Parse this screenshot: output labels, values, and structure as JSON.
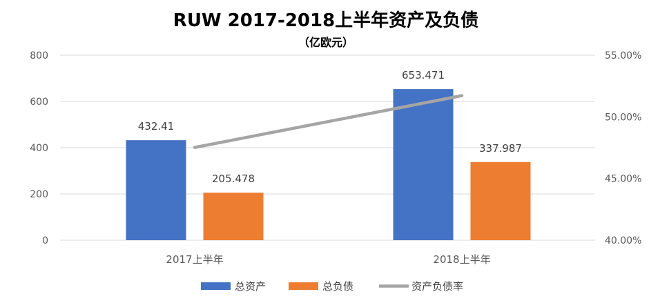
{
  "chart_data": {
    "type": "bar",
    "title": "RUW 2017-2018上半年资产及负债",
    "subtitle": "（亿欧元）",
    "categories": [
      "2017上半年",
      "2018上半年"
    ],
    "series": [
      {
        "name": "总资产",
        "kind": "bar",
        "axis": "left",
        "color": "#4472C4",
        "values": [
          432.41,
          653.471
        ],
        "labels": [
          "432.41",
          "653.471"
        ]
      },
      {
        "name": "总负债",
        "kind": "bar",
        "axis": "left",
        "color": "#ED7D31",
        "values": [
          205.478,
          337.987
        ],
        "labels": [
          "205.478",
          "337.987"
        ]
      },
      {
        "name": "资产负债率",
        "kind": "line",
        "axis": "right",
        "color": "#A5A5A5",
        "values": [
          47.52,
          51.72
        ]
      }
    ],
    "y_left": {
      "min": 0,
      "max": 800,
      "ticks": [
        0,
        200,
        400,
        600,
        800
      ],
      "tick_labels": [
        "0",
        "200",
        "400",
        "600",
        "800"
      ]
    },
    "y_right": {
      "min": 40,
      "max": 55,
      "ticks": [
        40,
        45,
        50,
        55
      ],
      "tick_labels": [
        "40.00%",
        "45.00%",
        "50.00%",
        "55.00%"
      ]
    },
    "grid": true,
    "legend_position": "bottom"
  }
}
